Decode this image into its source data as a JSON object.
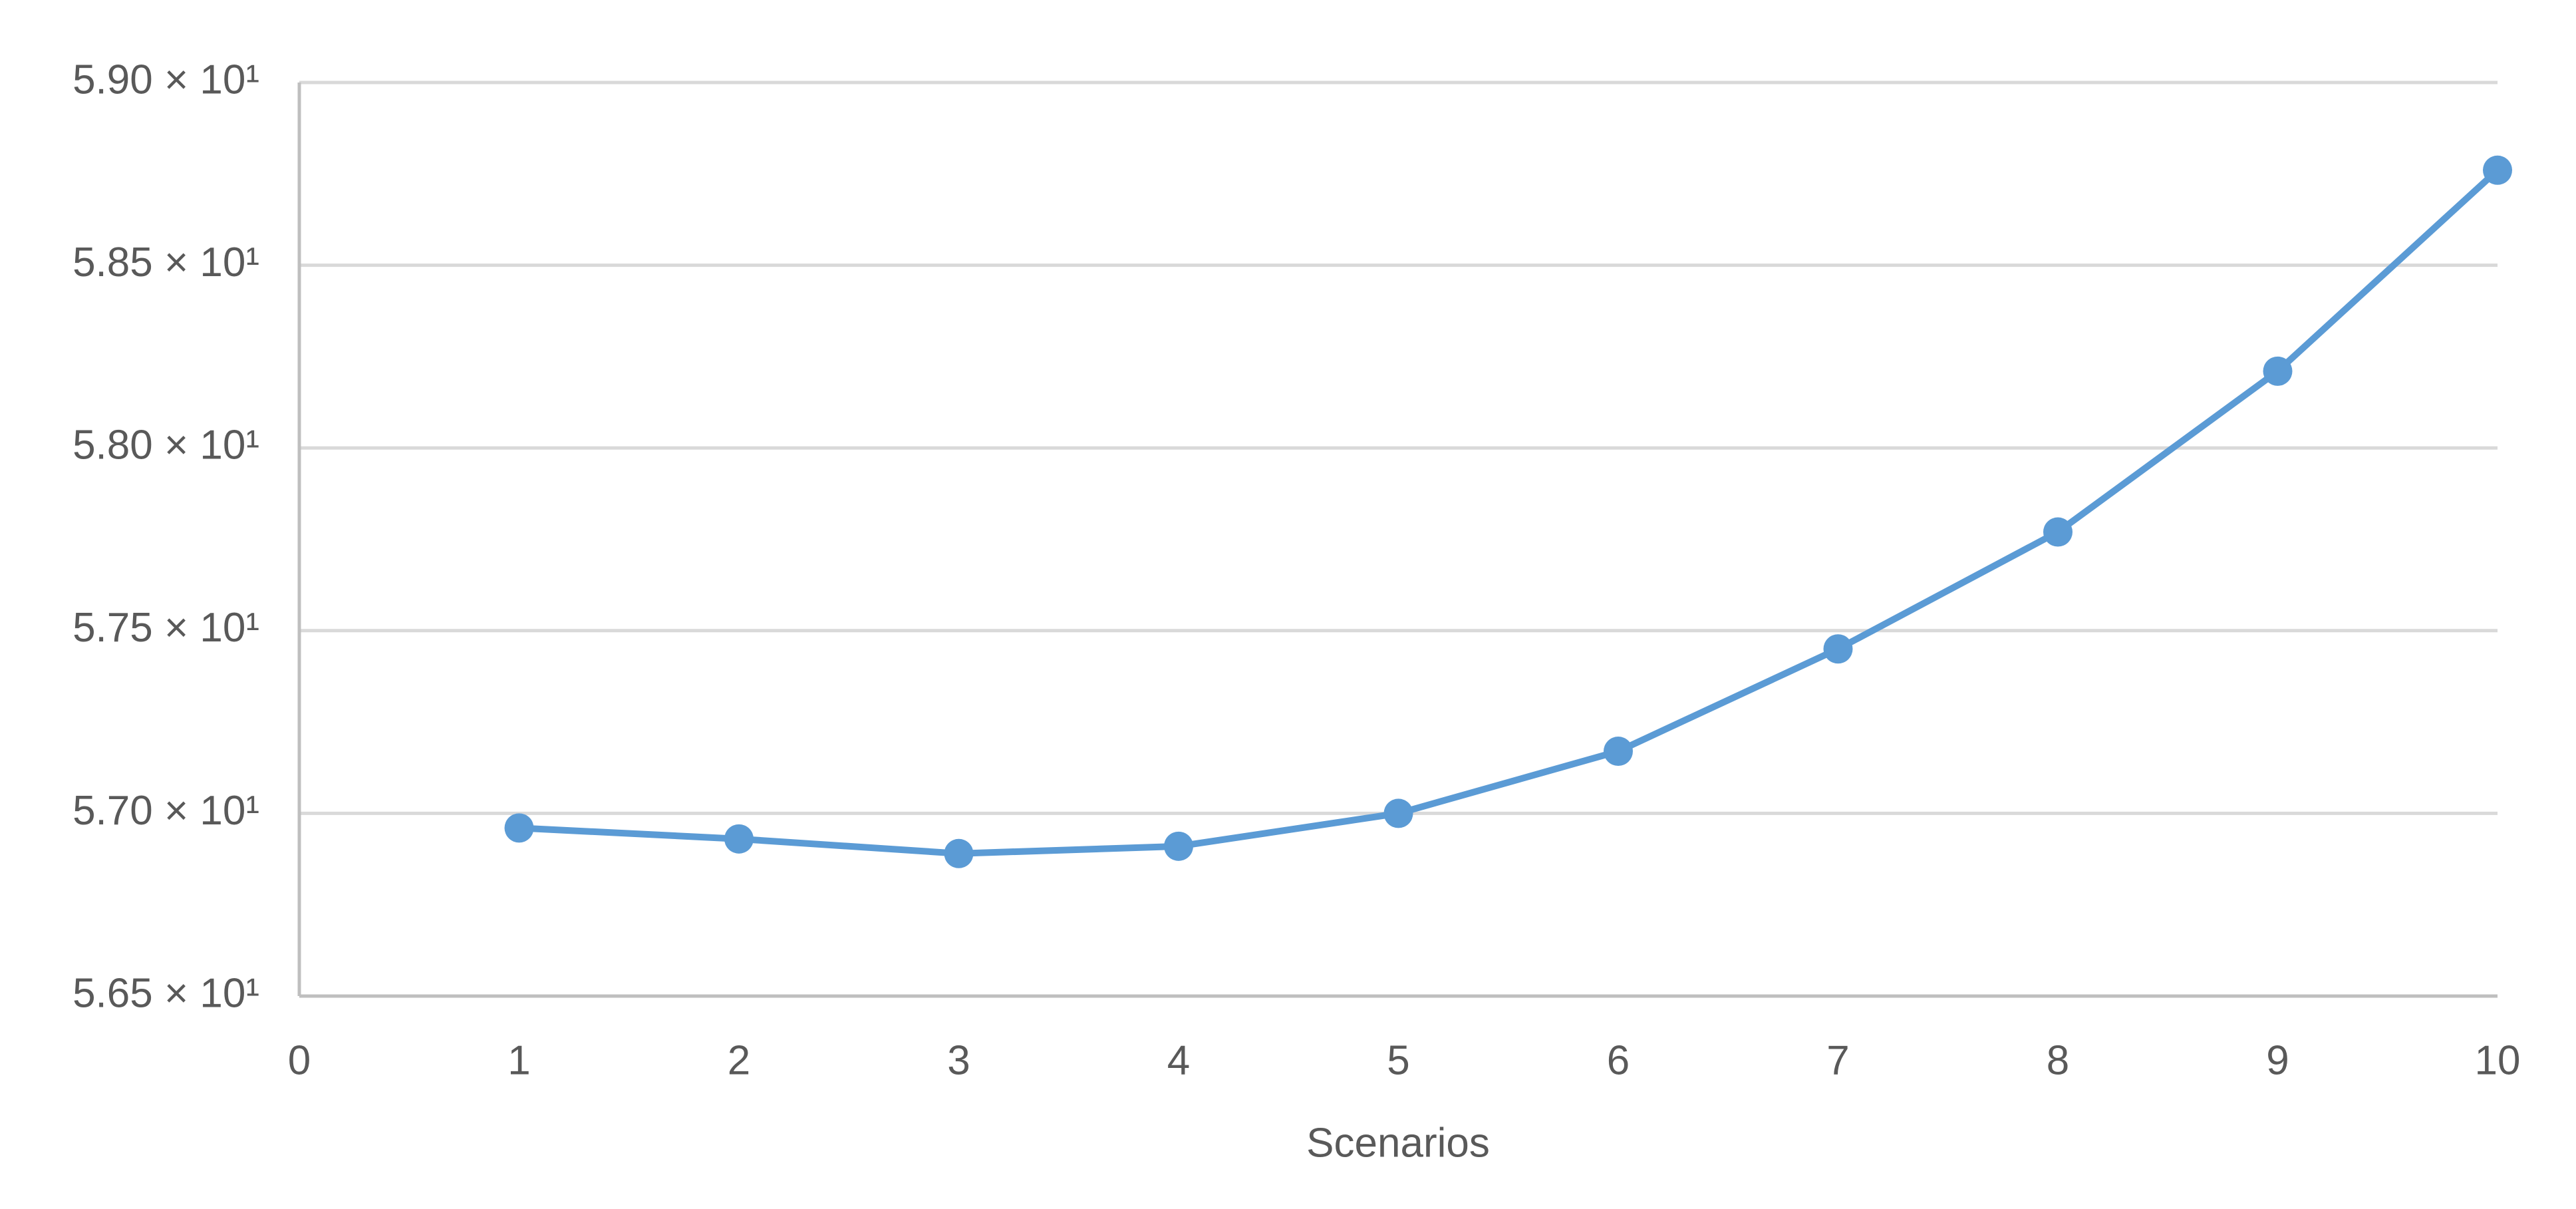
{
  "chart_data": {
    "type": "line",
    "xlabel": "Scenarios",
    "x": [
      1,
      2,
      3,
      4,
      5,
      6,
      7,
      8,
      9,
      10
    ],
    "values": [
      56.96,
      56.93,
      56.89,
      56.91,
      57.0,
      57.17,
      57.45,
      57.77,
      58.21,
      58.76
    ],
    "color": "#5b9bd5",
    "xlim": [
      0,
      10
    ],
    "xticks": [
      0,
      1,
      2,
      3,
      4,
      5,
      6,
      7,
      8,
      9,
      10
    ],
    "ylim": [
      56.5,
      59.0
    ],
    "yticks": [
      {
        "value": 56.5,
        "label": "5.65 × 10¹"
      },
      {
        "value": 57.0,
        "label": "5.70 × 10¹"
      },
      {
        "value": 57.5,
        "label": "5.75 × 10¹"
      },
      {
        "value": 58.0,
        "label": "5.80 × 10¹"
      },
      {
        "value": 58.5,
        "label": "5.85 × 10¹"
      },
      {
        "value": 59.0,
        "label": "5.90 × 10¹"
      }
    ],
    "grid": true
  }
}
